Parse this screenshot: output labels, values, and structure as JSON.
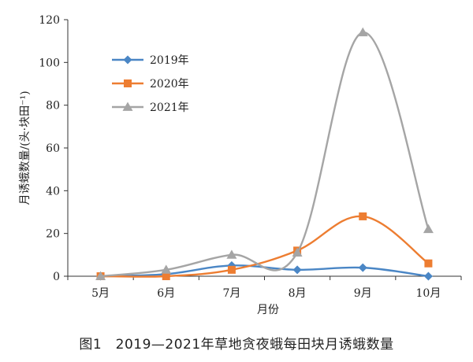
{
  "chart_data": {
    "type": "line",
    "categories": [
      "5月",
      "6月",
      "7月",
      "8月",
      "9月",
      "10月"
    ],
    "series": [
      {
        "name": "2019年",
        "values": [
          0,
          1,
          5,
          3,
          4,
          0
        ],
        "color": "#4a86c5",
        "marker": "diamond"
      },
      {
        "name": "2020年",
        "values": [
          0,
          0,
          3,
          12,
          28,
          6
        ],
        "color": "#ed7d31",
        "marker": "square"
      },
      {
        "name": "2021年",
        "values": [
          0,
          3,
          10,
          11,
          114,
          22
        ],
        "color": "#a5a5a5",
        "marker": "triangle"
      }
    ],
    "xlabel": "月份",
    "ylabel": "月诱蛾数量/(头·块田⁻¹)",
    "ylim": [
      0,
      120
    ],
    "yticks": [
      0,
      20,
      40,
      60,
      80,
      100,
      120
    ],
    "smooth": true,
    "legend": "upper-left inside plot",
    "grid": false
  },
  "caption": "图1　2019—2021年草地贪夜蛾每田块月诱蛾数量"
}
